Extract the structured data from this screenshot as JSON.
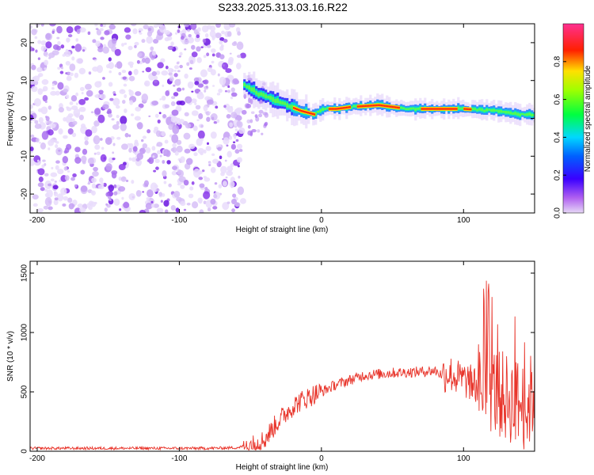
{
  "title": "S233.2025.313.03.16.R22",
  "colors": {
    "snr_line": "#e8352b",
    "noise": "#9b3cf0",
    "axis": "#000000"
  },
  "chart_data": [
    {
      "type": "heatmap",
      "xlabel": "Height of straight line (km)",
      "ylabel": "Frequency (Hz)",
      "xlim": [
        -205,
        150
      ],
      "ylim": [
        -25,
        25
      ],
      "x_ticks": [
        -200,
        -100,
        0,
        100
      ],
      "y_ticks": [
        -20,
        -10,
        0,
        10,
        20
      ],
      "colorbar": {
        "label": "Normalized spectral amplitude",
        "range": [
          0,
          1
        ],
        "ticks": [
          "0.0",
          "0.2",
          "0.4",
          "0.6",
          "0.8"
        ],
        "colormap": "rainbow (magenta → blue → cyan → green → yellow → red → pink)"
      },
      "noise_region_x": [
        -205,
        -55
      ],
      "signal_ridge": {
        "x": [
          -55,
          -45,
          -35,
          -25,
          -15,
          -5,
          0,
          10,
          20,
          40,
          60,
          80,
          100,
          120,
          140,
          150
        ],
        "freq": [
          9,
          6.5,
          5,
          3.5,
          2,
          1,
          2.5,
          2.5,
          3,
          3.5,
          2.5,
          2.5,
          2.5,
          2,
          1,
          1
        ]
      }
    },
    {
      "type": "line",
      "xlabel": "Height of straight line (km)",
      "ylabel": "SNR (10 * v/v)",
      "xlim": [
        -205,
        150
      ],
      "ylim": [
        0,
        1600
      ],
      "x_ticks": [
        -200,
        -100,
        0,
        100
      ],
      "y_ticks": [
        0,
        500,
        1000,
        1500
      ],
      "series": [
        {
          "x": [
            -205,
            -180,
            -160,
            -140,
            -120,
            -100,
            -80,
            -60,
            -45,
            -40,
            -35,
            -30,
            -25,
            -20,
            -15,
            -10,
            -5,
            0,
            10,
            20,
            30,
            40,
            50,
            60,
            70,
            80,
            85,
            90,
            95,
            100,
            110,
            120,
            130,
            140,
            145,
            150
          ],
          "y": [
            25,
            25,
            25,
            25,
            25,
            25,
            25,
            30,
            60,
            100,
            180,
            260,
            320,
            380,
            420,
            450,
            480,
            500,
            560,
            600,
            640,
            650,
            660,
            665,
            670,
            680,
            640,
            660,
            620,
            600,
            560,
            520,
            450,
            400,
            350,
            550
          ]
        }
      ]
    }
  ]
}
